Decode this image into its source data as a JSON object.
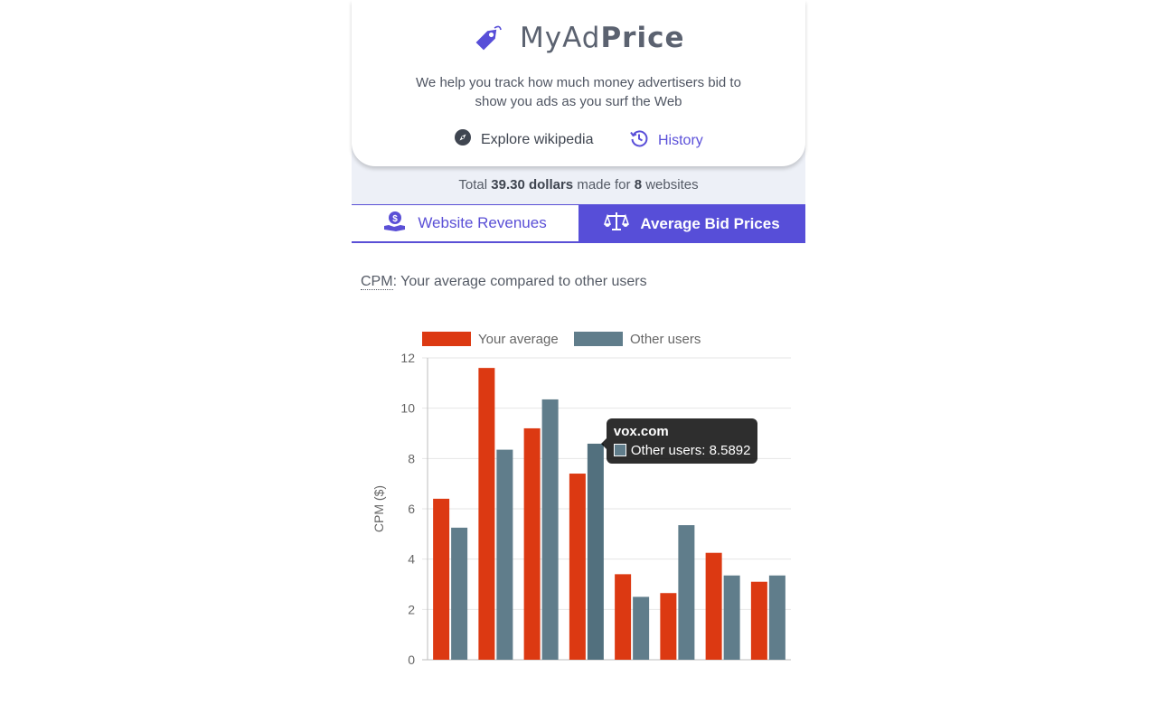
{
  "app": {
    "logo_my": "MyAd",
    "logo_price": "Price",
    "tagline_line1": "We help you track how much money advertisers bid to",
    "tagline_line2": "show you ads as you surf the Web",
    "brand_color": "#574ed8"
  },
  "actions": {
    "explore_label": "Explore wikipedia",
    "history_label": "History"
  },
  "summary": {
    "prefix": "Total",
    "amount": "39.30 dollars",
    "middle": "made for",
    "count": "8",
    "suffix": "websites"
  },
  "tabs": [
    {
      "label": "Website Revenues",
      "active": false
    },
    {
      "label": "Average Bid Prices",
      "active": true
    }
  ],
  "section": {
    "abbr": "CPM",
    "title_rest": ": Your average compared to other users"
  },
  "tooltip": {
    "title": "vox.com",
    "series": "Other users",
    "value": "8.5892",
    "category_index": 3,
    "series_index": 1
  },
  "chart_data": {
    "type": "bar",
    "categories": [
      "",
      "",
      "",
      "vox.com",
      "",
      "",
      "",
      ""
    ],
    "series": [
      {
        "name": "Your average",
        "color": "#dc3912",
        "values": [
          6.4,
          11.6,
          9.2,
          7.4,
          3.4,
          2.65,
          4.25,
          3.1
        ]
      },
      {
        "name": "Other users",
        "color": "#607d8b",
        "values": [
          5.25,
          8.35,
          10.35,
          8.5892,
          2.5,
          5.35,
          3.35,
          3.35
        ]
      }
    ],
    "ylabel": "CPM ($)",
    "ylim": [
      0,
      12
    ],
    "yticks": [
      0,
      2,
      4,
      6,
      8,
      10,
      12
    ],
    "grid": true,
    "legend": "top-center"
  }
}
